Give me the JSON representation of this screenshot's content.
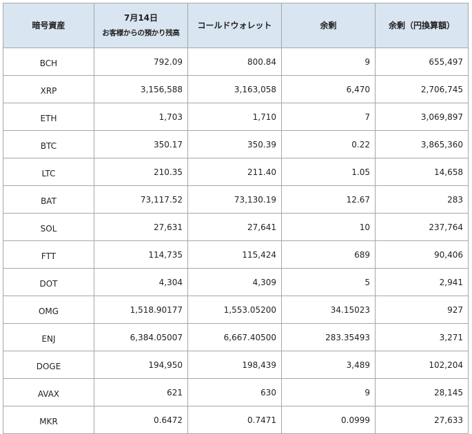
{
  "headers": {
    "asset": "暗号資産",
    "date": "7月14日",
    "customer": "お客様からの預かり残高",
    "cold": "コールドウォレット",
    "surplus": "余剰",
    "surplus_jpy": "余剰（円換算額）"
  },
  "rows": [
    {
      "asset": "BCH",
      "customer": "792.09",
      "cold": "800.84",
      "surplus": "9",
      "jpy": "655,497"
    },
    {
      "asset": "XRP",
      "customer": "3,156,588",
      "cold": "3,163,058",
      "surplus": "6,470",
      "jpy": "2,706,745"
    },
    {
      "asset": "ETH",
      "customer": "1,703",
      "cold": "1,710",
      "surplus": "7",
      "jpy": "3,069,897"
    },
    {
      "asset": "BTC",
      "customer": "350.17",
      "cold": "350.39",
      "surplus": "0.22",
      "jpy": "3,865,360"
    },
    {
      "asset": "LTC",
      "customer": "210.35",
      "cold": "211.40",
      "surplus": "1.05",
      "jpy": "14,658"
    },
    {
      "asset": "BAT",
      "customer": "73,117.52",
      "cold": "73,130.19",
      "surplus": "12.67",
      "jpy": "283"
    },
    {
      "asset": "SOL",
      "customer": "27,631",
      "cold": "27,641",
      "surplus": "10",
      "jpy": "237,764"
    },
    {
      "asset": "FTT",
      "customer": "114,735",
      "cold": "115,424",
      "surplus": "689",
      "jpy": "90,406"
    },
    {
      "asset": "DOT",
      "customer": "4,304",
      "cold": "4,309",
      "surplus": "5",
      "jpy": "2,941"
    },
    {
      "asset": "OMG",
      "customer": "1,518.90177",
      "cold": "1,553.05200",
      "surplus": "34.15023",
      "jpy": "927"
    },
    {
      "asset": "ENJ",
      "customer": "6,384.05007",
      "cold": "6,667.40500",
      "surplus": "283.35493",
      "jpy": "3,271"
    },
    {
      "asset": "DOGE",
      "customer": "194,950",
      "cold": "198,439",
      "surplus": "3,489",
      "jpy": "102,204"
    },
    {
      "asset": "AVAX",
      "customer": "621",
      "cold": "630",
      "surplus": "9",
      "jpy": "28,145"
    },
    {
      "asset": "MKR",
      "customer": "0.6472",
      "cold": "0.7471",
      "surplus": "0.0999",
      "jpy": "27,633"
    }
  ],
  "colors": {
    "header_bg": "#d9e5f1",
    "border": "#a6a6a6"
  }
}
